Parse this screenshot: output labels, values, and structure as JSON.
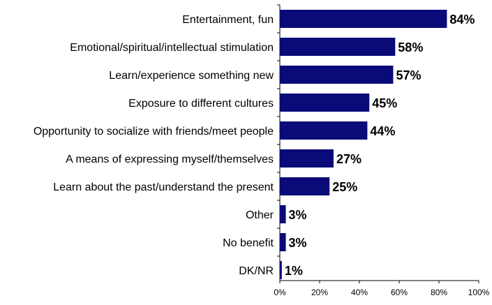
{
  "chart_data": {
    "type": "bar",
    "orientation": "horizontal",
    "categories": [
      "Entertainment, fun",
      "Emotional/spiritual/intellectual stimulation",
      "Learn/experience something new",
      "Exposure to different cultures",
      "Opportunity to socialize with friends/meet people",
      "A means of expressing myself/themselves",
      "Learn about the past/understand the present",
      "Other",
      "No benefit",
      "DK/NR"
    ],
    "values": [
      84,
      58,
      57,
      45,
      44,
      27,
      25,
      3,
      3,
      1
    ],
    "value_labels": [
      "84%",
      "58%",
      "57%",
      "45%",
      "44%",
      "27%",
      "25%",
      "3%",
      "3%",
      "1%"
    ],
    "xlim": [
      0,
      100
    ],
    "xticks": [
      0,
      20,
      40,
      60,
      80,
      100
    ],
    "xtick_labels": [
      "0%",
      "20%",
      "40%",
      "60%",
      "80%",
      "100%"
    ],
    "title": "",
    "xlabel": "",
    "ylabel": "",
    "grid": false,
    "legend": "none",
    "bar_color": "#0a0a78"
  }
}
